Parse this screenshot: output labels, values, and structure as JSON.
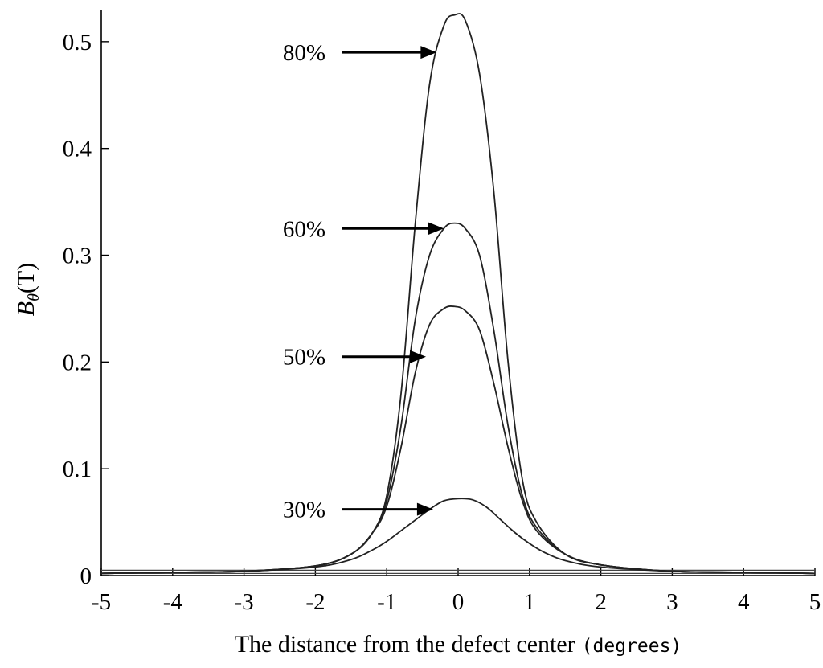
{
  "chart_data": {
    "type": "line",
    "xlabel": "The distance from the defect center",
    "xlabel_unit": "(degrees)",
    "ylabel_main": "B",
    "ylabel_sub": "θ",
    "ylabel_unit": "(T)",
    "xlim": [
      -5,
      5
    ],
    "ylim": [
      0,
      0.53
    ],
    "x_ticks": [
      "-5",
      "-4",
      "-3",
      "-2",
      "-1",
      "0",
      "1",
      "2",
      "3",
      "4",
      "5"
    ],
    "y_ticks": [
      "0",
      "0.1",
      "0.2",
      "0.3",
      "0.4",
      "0.5"
    ],
    "grid": false,
    "legend": "none",
    "baseline_offset": 0.005,
    "series": [
      {
        "name": "80%",
        "x": [
          -5,
          -4,
          -3,
          -2,
          -1.5,
          -1.2,
          -1.0,
          -0.8,
          -0.6,
          -0.4,
          -0.2,
          -0.05,
          0.1,
          0.3,
          0.5,
          0.7,
          0.9,
          1.1,
          1.5,
          2,
          3,
          4,
          5
        ],
        "values": [
          0.002,
          0.003,
          0.004,
          0.009,
          0.02,
          0.04,
          0.075,
          0.17,
          0.33,
          0.46,
          0.515,
          0.525,
          0.52,
          0.47,
          0.36,
          0.2,
          0.09,
          0.05,
          0.02,
          0.01,
          0.004,
          0.003,
          0.002
        ],
        "label_y": 0.49,
        "arrow_target": [
          -0.3,
          0.49
        ]
      },
      {
        "name": "60%",
        "x": [
          -5,
          -4,
          -3,
          -2,
          -1.5,
          -1.2,
          -1.0,
          -0.8,
          -0.6,
          -0.4,
          -0.2,
          -0.05,
          0.1,
          0.3,
          0.5,
          0.7,
          0.9,
          1.1,
          1.5,
          2,
          3,
          4,
          5
        ],
        "values": [
          0.002,
          0.003,
          0.004,
          0.009,
          0.02,
          0.04,
          0.07,
          0.14,
          0.24,
          0.3,
          0.325,
          0.33,
          0.325,
          0.3,
          0.23,
          0.14,
          0.075,
          0.045,
          0.02,
          0.01,
          0.004,
          0.003,
          0.002
        ],
        "label_y": 0.325,
        "arrow_target": [
          -0.2,
          0.325
        ]
      },
      {
        "name": "50%",
        "x": [
          -5,
          -4,
          -3,
          -2,
          -1.5,
          -1.2,
          -1.0,
          -0.8,
          -0.6,
          -0.4,
          -0.2,
          -0.05,
          0.1,
          0.3,
          0.5,
          0.7,
          0.9,
          1.1,
          1.5,
          2,
          3,
          4,
          5
        ],
        "values": [
          0.002,
          0.003,
          0.004,
          0.009,
          0.02,
          0.04,
          0.065,
          0.12,
          0.19,
          0.235,
          0.25,
          0.252,
          0.248,
          0.23,
          0.18,
          0.12,
          0.07,
          0.042,
          0.02,
          0.01,
          0.004,
          0.003,
          0.002
        ],
        "label_y": 0.205,
        "arrow_target": [
          -0.45,
          0.205
        ]
      },
      {
        "name": "30%",
        "x": [
          -5,
          -4,
          -3,
          -2,
          -1.5,
          -1.2,
          -1.0,
          -0.8,
          -0.6,
          -0.4,
          -0.2,
          0,
          0.2,
          0.4,
          0.6,
          0.8,
          1.0,
          1.2,
          1.5,
          2,
          3,
          4,
          5
        ],
        "values": [
          0.002,
          0.003,
          0.004,
          0.008,
          0.015,
          0.024,
          0.032,
          0.042,
          0.052,
          0.062,
          0.07,
          0.072,
          0.071,
          0.064,
          0.052,
          0.04,
          0.03,
          0.022,
          0.014,
          0.008,
          0.004,
          0.003,
          0.002
        ],
        "label_y": 0.062,
        "arrow_target": [
          -0.35,
          0.062
        ]
      }
    ]
  }
}
